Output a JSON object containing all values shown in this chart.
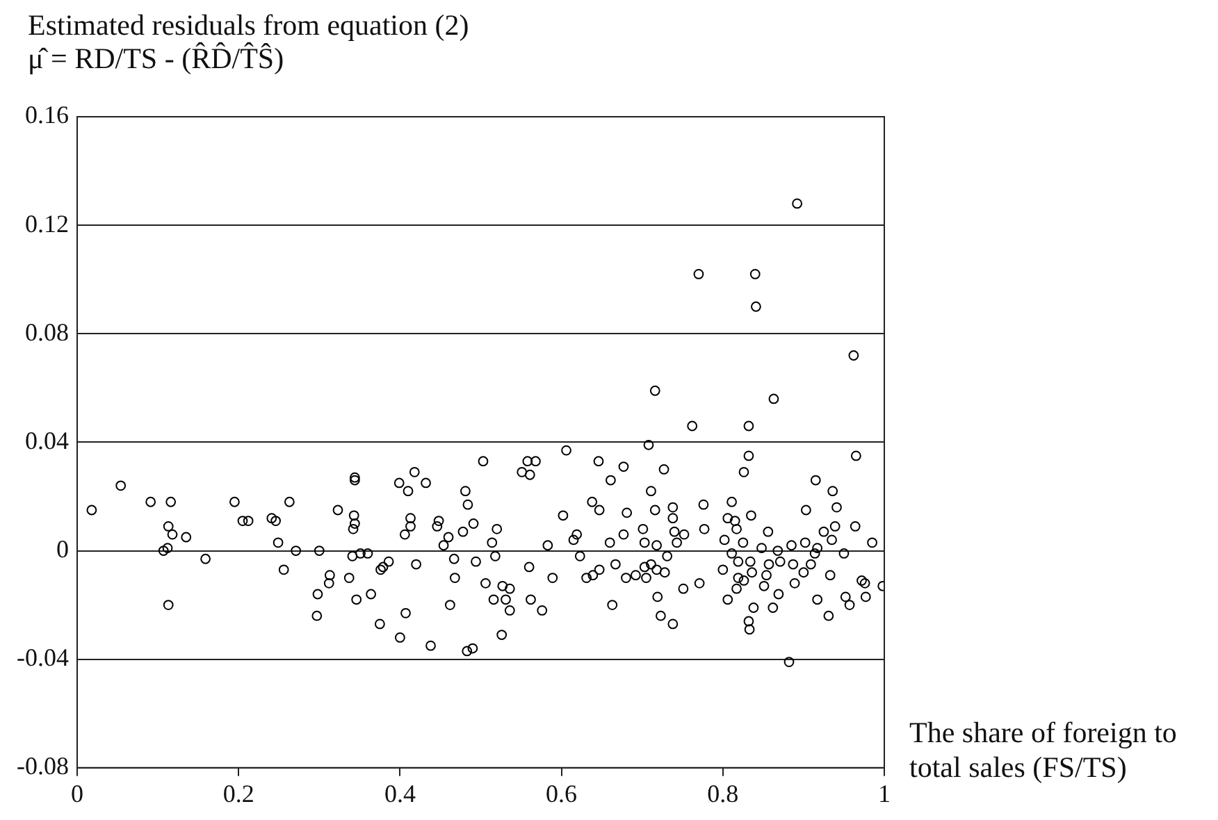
{
  "chart_data": {
    "type": "scatter",
    "title": "Estimated residuals from equation (2)",
    "subtitle": "μ̂ = RD/TS - (R̂D̂/T̂Ŝ)",
    "xlabel": "The share of foreign to total sales (FS/TS)",
    "xlim": [
      0,
      1
    ],
    "xticks": [
      0,
      0.2,
      0.4,
      0.6,
      0.8,
      1
    ],
    "ylim": [
      -0.08,
      0.16
    ],
    "yticks": [
      -0.08,
      -0.04,
      0,
      0.04,
      0.08,
      0.12,
      0.16
    ],
    "grid": "y",
    "marker": "circle",
    "series": [
      {
        "color": "#000000",
        "x": [
          0.018,
          0.054,
          0.091,
          0.116,
          0.113,
          0.118,
          0.135,
          0.112,
          0.107,
          0.159,
          0.113,
          0.195,
          0.205,
          0.212,
          0.241,
          0.246,
          0.263,
          0.249,
          0.256,
          0.271,
          0.3,
          0.323,
          0.344,
          0.344,
          0.343,
          0.344,
          0.342,
          0.341,
          0.351,
          0.36,
          0.313,
          0.312,
          0.298,
          0.297,
          0.337,
          0.346,
          0.364,
          0.375,
          0.379,
          0.386,
          0.376,
          0.4,
          0.407,
          0.42,
          0.399,
          0.41,
          0.418,
          0.432,
          0.413,
          0.413,
          0.406,
          0.448,
          0.446,
          0.46,
          0.454,
          0.467,
          0.494,
          0.468,
          0.462,
          0.438,
          0.483,
          0.49,
          0.503,
          0.481,
          0.484,
          0.478,
          0.491,
          0.506,
          0.514,
          0.52,
          0.518,
          0.527,
          0.536,
          0.516,
          0.531,
          0.536,
          0.526,
          0.551,
          0.561,
          0.558,
          0.568,
          0.56,
          0.562,
          0.576,
          0.589,
          0.583,
          0.606,
          0.602,
          0.615,
          0.619,
          0.623,
          0.631,
          0.639,
          0.647,
          0.638,
          0.647,
          0.646,
          0.661,
          0.677,
          0.66,
          0.677,
          0.681,
          0.667,
          0.68,
          0.692,
          0.663,
          0.701,
          0.703,
          0.703,
          0.705,
          0.711,
          0.718,
          0.728,
          0.718,
          0.731,
          0.708,
          0.727,
          0.711,
          0.716,
          0.738,
          0.738,
          0.74,
          0.752,
          0.743,
          0.719,
          0.723,
          0.738,
          0.751,
          0.771,
          0.776,
          0.777,
          0.762,
          0.832,
          0.832,
          0.826,
          0.811,
          0.806,
          0.815,
          0.817,
          0.835,
          0.802,
          0.825,
          0.811,
          0.819,
          0.834,
          0.8,
          0.819,
          0.826,
          0.836,
          0.817,
          0.806,
          0.838,
          0.832,
          0.833,
          0.856,
          0.848,
          0.868,
          0.857,
          0.871,
          0.854,
          0.851,
          0.869,
          0.862,
          0.882,
          0.885,
          0.902,
          0.887,
          0.9,
          0.889,
          0.909,
          0.914,
          0.917,
          0.903,
          0.915,
          0.925,
          0.935,
          0.939,
          0.941,
          0.936,
          0.965,
          0.964,
          0.95,
          0.933,
          0.917,
          0.931,
          0.952,
          0.957,
          0.972,
          0.976,
          0.977,
          0.985,
          0.998,
          0.892,
          0.77,
          0.84,
          0.841,
          0.962,
          0.716,
          0.863
        ],
        "values": [
          0.015,
          0.024,
          0.018,
          0.018,
          0.009,
          0.006,
          0.005,
          0.001,
          0,
          -0.003,
          -0.02,
          0.018,
          0.011,
          0.011,
          0.012,
          0.011,
          0.018,
          0.003,
          -0.007,
          0,
          0,
          0.015,
          0.027,
          0.026,
          0.013,
          0.01,
          0.008,
          -0.002,
          -0.001,
          -0.001,
          -0.009,
          -0.012,
          -0.016,
          -0.024,
          -0.01,
          -0.018,
          -0.016,
          -0.027,
          -0.006,
          -0.004,
          -0.007,
          -0.032,
          -0.023,
          -0.005,
          0.025,
          0.022,
          0.029,
          0.025,
          0.012,
          0.009,
          0.006,
          0.011,
          0.009,
          0.005,
          0.002,
          -0.003,
          -0.004,
          -0.01,
          -0.02,
          -0.035,
          -0.037,
          -0.036,
          0.033,
          0.022,
          0.017,
          0.007,
          0.01,
          -0.012,
          0.003,
          0.008,
          -0.002,
          -0.013,
          -0.014,
          -0.018,
          -0.018,
          -0.022,
          -0.031,
          0.029,
          0.028,
          0.033,
          0.033,
          -0.006,
          -0.018,
          -0.022,
          -0.01,
          0.002,
          0.037,
          0.013,
          0.004,
          0.006,
          -0.002,
          -0.01,
          -0.009,
          -0.007,
          0.018,
          0.015,
          0.033,
          0.026,
          0.031,
          0.003,
          0.006,
          0.014,
          -0.005,
          -0.01,
          -0.009,
          -0.02,
          0.008,
          0.003,
          -0.006,
          -0.01,
          -0.005,
          -0.007,
          -0.008,
          0.002,
          -0.002,
          0.039,
          0.03,
          0.022,
          0.015,
          0.016,
          0.012,
          0.007,
          0.006,
          0.003,
          -0.017,
          -0.024,
          -0.027,
          -0.014,
          -0.012,
          0.017,
          0.008,
          0.046,
          0.046,
          0.035,
          0.029,
          0.018,
          0.012,
          0.011,
          0.008,
          0.013,
          0.004,
          0.003,
          -0.001,
          -0.004,
          -0.004,
          -0.007,
          -0.01,
          -0.011,
          -0.008,
          -0.014,
          -0.018,
          -0.021,
          -0.026,
          -0.029,
          0.007,
          0.001,
          0,
          -0.005,
          -0.004,
          -0.009,
          -0.013,
          -0.016,
          -0.021,
          -0.041,
          0.002,
          0.003,
          -0.005,
          -0.008,
          -0.012,
          -0.005,
          -0.001,
          0.001,
          0.015,
          0.026,
          0.007,
          0.004,
          0.009,
          0.016,
          0.022,
          0.035,
          0.009,
          -0.001,
          -0.009,
          -0.018,
          -0.024,
          -0.017,
          -0.02,
          -0.011,
          -0.012,
          -0.017,
          0.003,
          -0.013,
          0.128,
          0.102,
          0.102,
          0.09,
          0.072,
          0.059,
          0.056
        ]
      }
    ]
  }
}
